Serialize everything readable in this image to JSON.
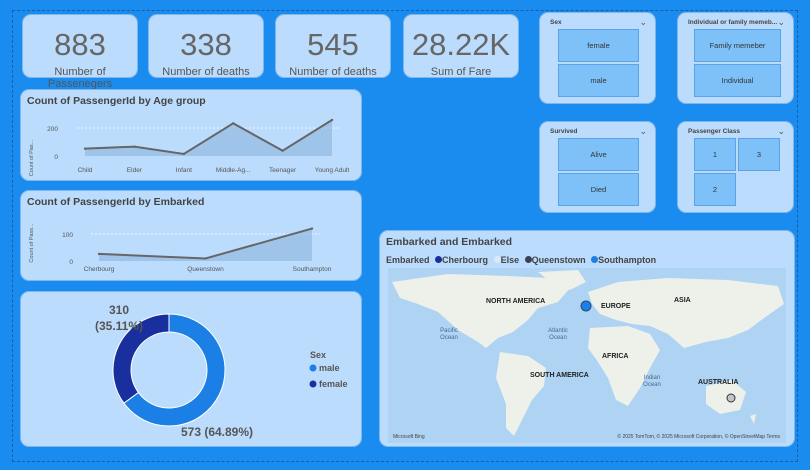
{
  "kpis": [
    {
      "value": "883",
      "label": "Number of Passenegers"
    },
    {
      "value": "338",
      "label": "Number of deaths"
    },
    {
      "value": "545",
      "label": "Number of deaths"
    },
    {
      "value": "28.22K",
      "label": "Sum of Fare"
    }
  ],
  "slicers": {
    "sex": {
      "title": "Sex",
      "options": [
        "female",
        "male"
      ]
    },
    "family": {
      "title": "Individual or family memeb...",
      "options": [
        "Family memeber",
        "Individual"
      ]
    },
    "survived": {
      "title": "Survived",
      "options": [
        "Alive",
        "Died"
      ]
    },
    "pclass": {
      "title": "Passenger Class",
      "options": [
        "1",
        "3",
        "2"
      ]
    }
  },
  "chart_age": {
    "title": "Count of PassengerId by Age group",
    "ylabel": "Count of Pas...",
    "yticks": [
      "0",
      "200"
    ]
  },
  "chart_embarked": {
    "title": "Count of PassengerId by Embarked",
    "ylabel": "Count of Pass...",
    "yticks": [
      "0",
      "100"
    ]
  },
  "donut": {
    "label_female": "310",
    "label_female_pct": "(35.11%)",
    "label_male": "573 (64.89%)",
    "legend_title": "Sex",
    "legend": [
      "male",
      "female"
    ]
  },
  "map": {
    "title": "Embarked and Embarked",
    "legend_label": "Embarked",
    "legend": [
      "Cherbourg",
      "Else",
      "Queenstown",
      "Southampton"
    ],
    "labels": {
      "north_america": "NORTH AMERICA",
      "europe": "EUROPE",
      "asia": "ASIA",
      "pacific": "Pacific",
      "pacific2": "Ocean",
      "atlantic": "Atlantic",
      "atlantic2": "Ocean",
      "africa": "AFRICA",
      "south_america": "SOUTH AMERICA",
      "indian": "Indian",
      "indian2": "Ocean",
      "australia": "AUSTRALIA"
    },
    "credit": "© 2025 TomTom, © 2025 Microsoft Corporation, © OpenStreetMap  Terms",
    "brand": "Microsoft Bing"
  },
  "colors": {
    "accent": "#1a8cf0",
    "male": "#1b7fe6",
    "female": "#1a2f9e",
    "line": "#666666"
  },
  "chart_data": [
    {
      "type": "area",
      "title": "Count of PassengerId by Age group",
      "ylabel": "Count of Pas...",
      "categories": [
        "Child",
        "Elder",
        "Infant",
        "Middle-Ag...",
        "Teenager",
        "Young Adult"
      ],
      "values": [
        55,
        70,
        15,
        245,
        40,
        270
      ],
      "ylim": [
        0,
        300
      ]
    },
    {
      "type": "area",
      "title": "Count of PassengerId by Embarked",
      "ylabel": "Count of Pass...",
      "categories": [
        "Cherbourg",
        "Queenstown",
        "Southampton"
      ],
      "values": [
        28,
        10,
        128
      ],
      "ylim": [
        0,
        150
      ]
    },
    {
      "type": "pie",
      "categories": [
        "male",
        "female"
      ],
      "values": [
        573,
        310
      ]
    }
  ]
}
